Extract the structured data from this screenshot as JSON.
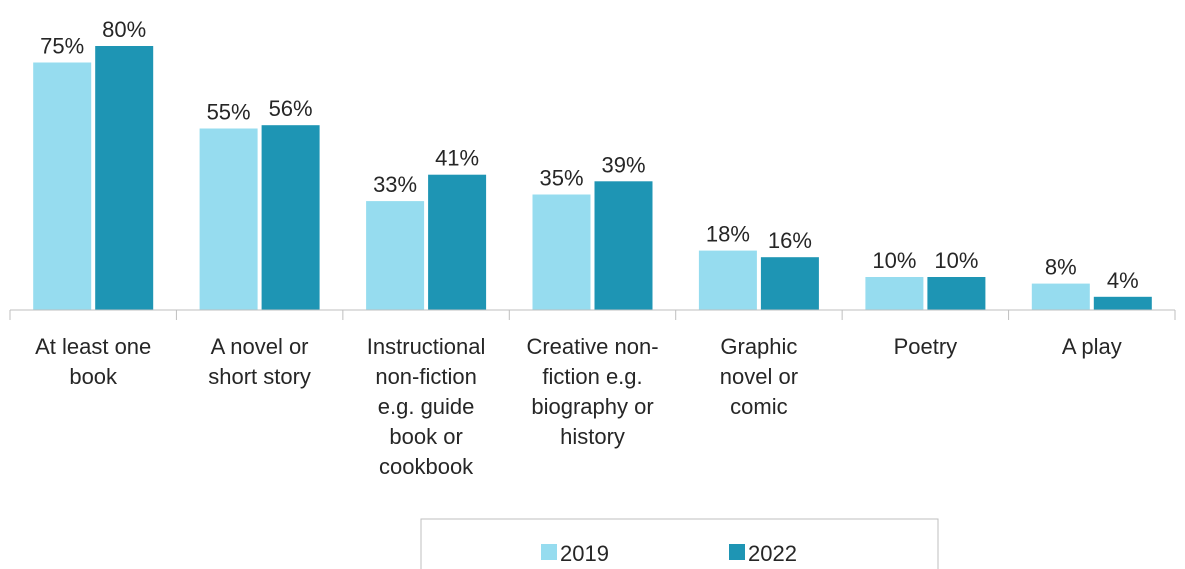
{
  "chart_data": {
    "type": "bar",
    "categories": [
      [
        "At least one",
        "book"
      ],
      [
        "A novel or",
        "short story"
      ],
      [
        "Instructional",
        "non-fiction",
        "e.g. guide",
        "book or",
        "cookbook"
      ],
      [
        "Creative non-",
        "fiction e.g.",
        "biography or",
        "history"
      ],
      [
        "Graphic",
        "novel or",
        "comic"
      ],
      [
        "Poetry"
      ],
      [
        "A play"
      ]
    ],
    "series": [
      {
        "name": "2019",
        "values": [
          75,
          55,
          33,
          35,
          18,
          10,
          8
        ],
        "labels": [
          "75%",
          "55%",
          "33%",
          "35%",
          "18%",
          "10%",
          "8%"
        ],
        "color": "#96dcef"
      },
      {
        "name": "2022",
        "values": [
          80,
          56,
          41,
          39,
          16,
          10,
          4
        ],
        "labels": [
          "80%",
          "56%",
          "41%",
          "39%",
          "16%",
          "10%",
          "4%"
        ],
        "color": "#1e95b4"
      }
    ],
    "ylim": [
      0,
      80
    ],
    "legend": "bottom-center",
    "grid": false
  }
}
